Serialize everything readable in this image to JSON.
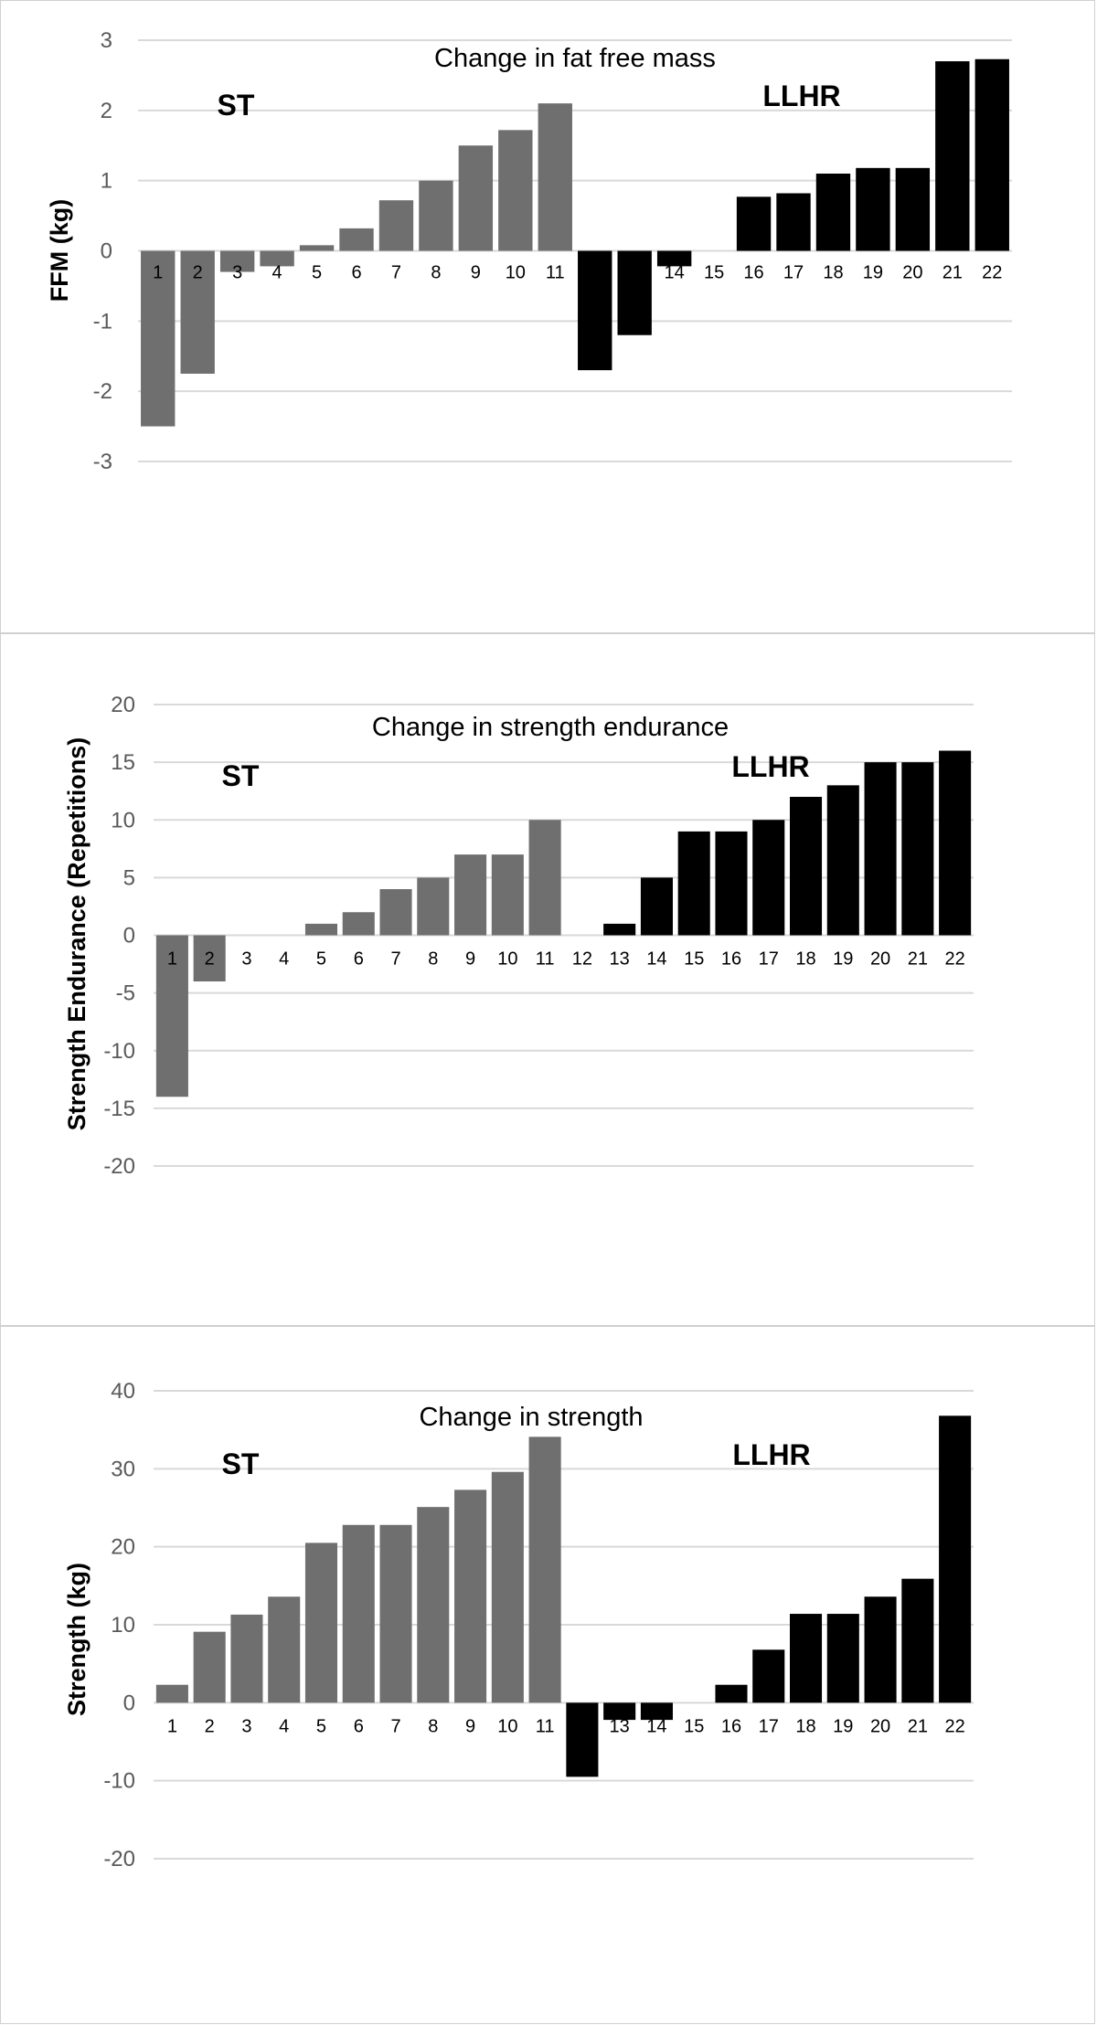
{
  "colors": {
    "st": "#6f6f6f",
    "llhr": "#000000",
    "grid": "#d9d9d9"
  },
  "chart_data": [
    {
      "type": "bar",
      "title": "Change in fat free mass",
      "ylabel": "FFM (kg)",
      "ylim": [
        -3,
        3
      ],
      "yticks": [
        3,
        2,
        1,
        0,
        -1,
        -2,
        -3
      ],
      "group_labels": [
        "ST",
        "LLHR"
      ],
      "categories": [
        "1",
        "2",
        "3",
        "4",
        "5",
        "6",
        "7",
        "8",
        "9",
        "10",
        "11",
        "",
        "",
        "14",
        "15",
        "16",
        "17",
        "18",
        "19",
        "20",
        "21",
        "22"
      ],
      "series": [
        {
          "name": "ST",
          "values": [
            -2.5,
            -1.75,
            -0.3,
            -0.22,
            0.08,
            0.32,
            0.72,
            1.0,
            1.5,
            1.72,
            2.1,
            null,
            null,
            null,
            null,
            null,
            null,
            null,
            null,
            null,
            null,
            null
          ]
        },
        {
          "name": "LLHR",
          "values": [
            null,
            null,
            null,
            null,
            null,
            null,
            null,
            null,
            null,
            null,
            null,
            -1.7,
            -1.2,
            -0.22,
            0,
            0.77,
            0.82,
            1.1,
            1.18,
            1.18,
            2.7,
            2.73
          ]
        }
      ],
      "grid": true
    },
    {
      "type": "bar",
      "title": "Change in strength endurance",
      "ylabel": "Strength Endurance (Repetitions)",
      "ylim": [
        -20,
        20
      ],
      "yticks": [
        20,
        15,
        10,
        5,
        0,
        -5,
        -10,
        -15,
        -20
      ],
      "group_labels": [
        "ST",
        "LLHR"
      ],
      "categories": [
        "1",
        "2",
        "3",
        "4",
        "5",
        "6",
        "7",
        "8",
        "9",
        "10",
        "11",
        "12",
        "13",
        "14",
        "15",
        "16",
        "17",
        "18",
        "19",
        "20",
        "21",
        "22"
      ],
      "series": [
        {
          "name": "ST",
          "values": [
            -14,
            -4,
            0,
            0,
            1,
            2,
            4,
            5,
            7,
            7,
            10,
            null,
            null,
            null,
            null,
            null,
            null,
            null,
            null,
            null,
            null,
            null
          ]
        },
        {
          "name": "LLHR",
          "values": [
            null,
            null,
            null,
            null,
            null,
            null,
            null,
            null,
            null,
            null,
            null,
            0,
            1,
            5,
            9,
            9,
            10,
            12,
            13,
            15,
            15,
            16
          ]
        }
      ],
      "grid": true
    },
    {
      "type": "bar",
      "title": "Change in strength",
      "ylabel": "Strength (kg)",
      "ylim": [
        -20,
        40
      ],
      "yticks": [
        40,
        30,
        20,
        10,
        0,
        -10,
        -20
      ],
      "group_labels": [
        "ST",
        "LLHR"
      ],
      "categories": [
        "1",
        "2",
        "3",
        "4",
        "5",
        "6",
        "7",
        "8",
        "9",
        "10",
        "11",
        "",
        "13",
        "14",
        "15",
        "16",
        "17",
        "18",
        "19",
        "20",
        "21",
        "22"
      ],
      "series": [
        {
          "name": "ST",
          "values": [
            2.3,
            9.1,
            11.3,
            13.6,
            20.5,
            22.8,
            22.8,
            25.1,
            27.3,
            29.6,
            34.1,
            null,
            null,
            null,
            null,
            null,
            null,
            null,
            null,
            null,
            null,
            null
          ]
        },
        {
          "name": "LLHR",
          "values": [
            null,
            null,
            null,
            null,
            null,
            null,
            null,
            null,
            null,
            null,
            null,
            -9.5,
            -2.2,
            -2.2,
            0,
            2.3,
            6.8,
            11.4,
            11.4,
            13.6,
            15.9,
            36.8
          ]
        }
      ],
      "grid": true
    }
  ]
}
